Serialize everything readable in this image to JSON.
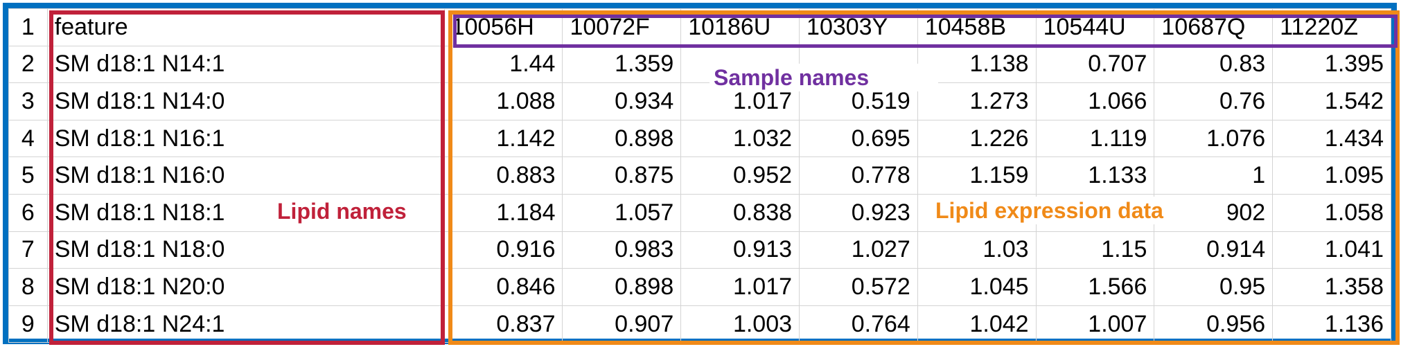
{
  "table": {
    "header": {
      "row_number": "1",
      "feature": "feature",
      "samples": [
        "10056H",
        "10072F",
        "10186U",
        "10303Y",
        "10458B",
        "10544U",
        "10687Q",
        "11220Z"
      ]
    },
    "rows": [
      {
        "n": "2",
        "name": "SM d18:1 N14:1",
        "values": [
          "1.44",
          "1.359",
          "",
          "",
          "1.138",
          "0.707",
          "0.83",
          "1.395"
        ]
      },
      {
        "n": "3",
        "name": "SM d18:1 N14:0",
        "values": [
          "1.088",
          "0.934",
          "1.017",
          "0.519",
          "1.273",
          "1.066",
          "0.76",
          "1.542"
        ]
      },
      {
        "n": "4",
        "name": "SM d18:1 N16:1",
        "values": [
          "1.142",
          "0.898",
          "1.032",
          "0.695",
          "1.226",
          "1.119",
          "1.076",
          "1.434"
        ]
      },
      {
        "n": "5",
        "name": "SM d18:1 N16:0",
        "values": [
          "0.883",
          "0.875",
          "0.952",
          "0.778",
          "1.159",
          "1.133",
          "1",
          "1.095"
        ]
      },
      {
        "n": "6",
        "name": "SM d18:1 N18:1",
        "values": [
          "1.184",
          "1.057",
          "0.838",
          "0.923",
          "",
          "",
          "902",
          "1.058"
        ]
      },
      {
        "n": "7",
        "name": "SM d18:1 N18:0",
        "values": [
          "0.916",
          "0.983",
          "0.913",
          "1.027",
          "1.03",
          "1.15",
          "0.914",
          "1.041"
        ]
      },
      {
        "n": "8",
        "name": "SM d18:1 N20:0",
        "values": [
          "0.846",
          "0.898",
          "1.017",
          "0.572",
          "1.045",
          "1.566",
          "0.95",
          "1.358"
        ]
      },
      {
        "n": "9",
        "name": "SM d18:1 N24:1",
        "values": [
          "0.837",
          "0.907",
          "1.003",
          "0.764",
          "1.042",
          "1.007",
          "0.956",
          "1.136"
        ]
      }
    ]
  },
  "annotations": {
    "lipid_names": "Lipid names",
    "sample_names": "Sample names",
    "expression": "Lipid expression data"
  },
  "colors": {
    "outer_border": "#0070c0",
    "lipid_box": "#c0213a",
    "expression_box": "#f08a18",
    "sample_box": "#7030a0"
  }
}
